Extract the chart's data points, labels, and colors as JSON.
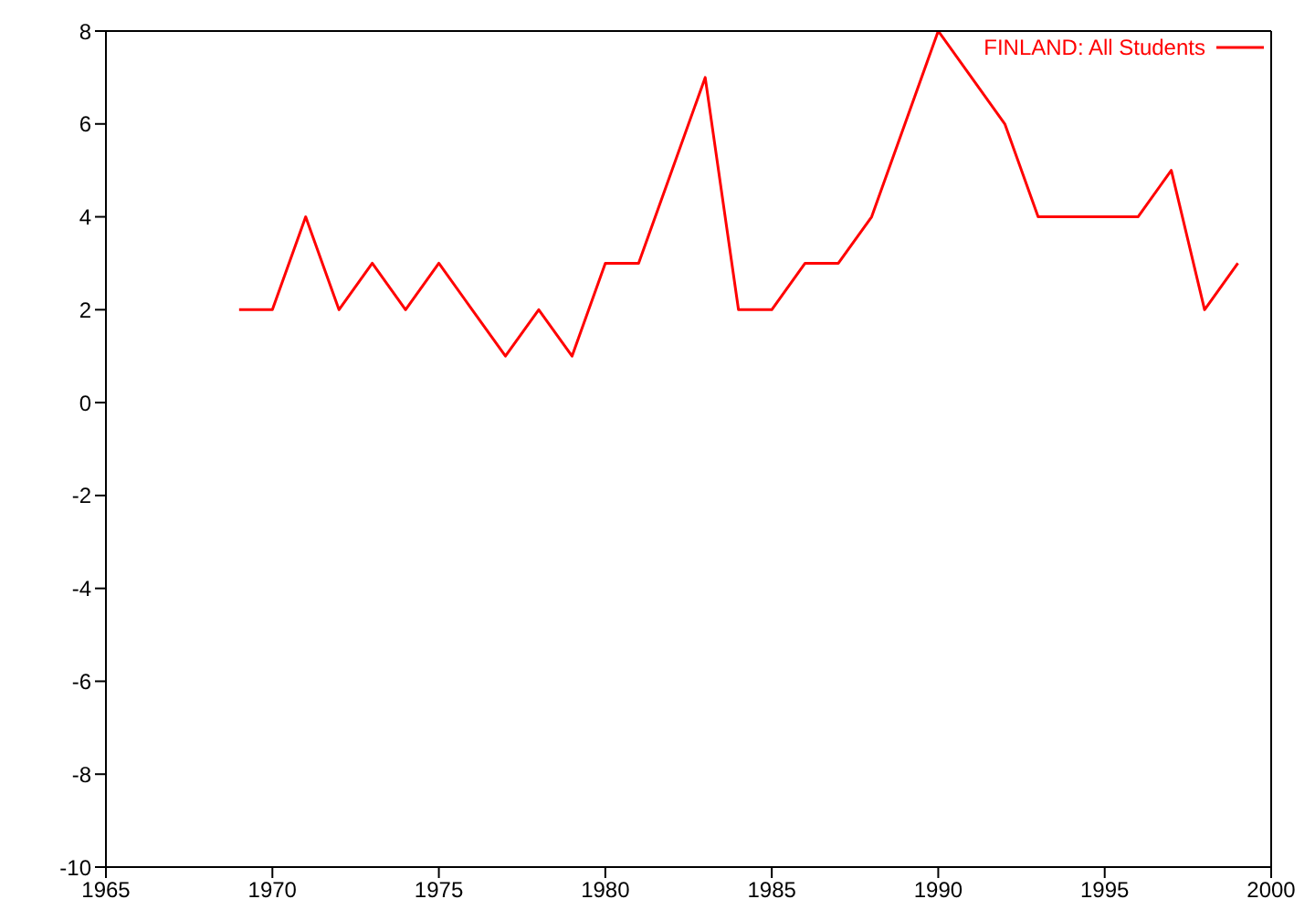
{
  "chart_data": {
    "type": "line",
    "x": [
      1969,
      1970,
      1971,
      1972,
      1973,
      1974,
      1975,
      1976,
      1977,
      1978,
      1979,
      1980,
      1981,
      1982,
      1983,
      1984,
      1985,
      1986,
      1987,
      1988,
      1989,
      1990,
      1991,
      1992,
      1993,
      1994,
      1995,
      1996,
      1997,
      1998,
      1999
    ],
    "series": [
      {
        "name": "FINLAND: All Students",
        "color": "#ff0000",
        "values": [
          2,
          2,
          4,
          2,
          3,
          2,
          3,
          2,
          1,
          2,
          1,
          3,
          3,
          5,
          7,
          2,
          2,
          3,
          3,
          4,
          6,
          8,
          7,
          6,
          4,
          4,
          4,
          4,
          5,
          2,
          3
        ]
      }
    ],
    "xlim": [
      1965,
      2000
    ],
    "xticks": [
      1965,
      1970,
      1975,
      1980,
      1985,
      1990,
      1995,
      2000
    ],
    "ylim": [
      -10,
      8
    ],
    "yticks": [
      -10,
      -8,
      -6,
      -4,
      -2,
      0,
      2,
      4,
      6,
      8
    ],
    "grid": false,
    "legend": "top right",
    "marker": "none",
    "line_style": "solid"
  }
}
